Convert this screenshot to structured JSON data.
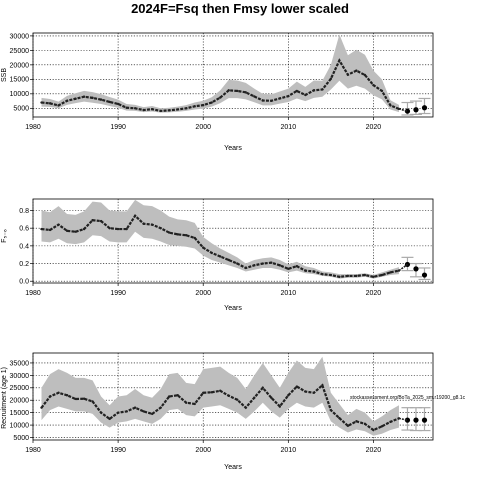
{
  "page": {
    "title": "2024F=Fsq then Fmsy lower scaled"
  },
  "chart_data": [
    {
      "type": "line",
      "panel": "ssb",
      "title": "",
      "xlabel": "Years",
      "ylabel": "SSB",
      "xlim": [
        1980,
        2027
      ],
      "ylim": [
        2000,
        31000
      ],
      "xticks": [
        1980,
        1990,
        2000,
        2010,
        2020
      ],
      "yticks": [
        5000,
        10000,
        15000,
        20000,
        25000,
        30000
      ],
      "grid": true,
      "band_color": "#bebebe",
      "line_color": "#222222",
      "x": [
        1981,
        1982,
        1983,
        1984,
        1985,
        1986,
        1987,
        1988,
        1989,
        1990,
        1991,
        1992,
        1993,
        1994,
        1995,
        1996,
        1997,
        1998,
        1999,
        2000,
        2001,
        2002,
        2003,
        2004,
        2005,
        2006,
        2007,
        2008,
        2009,
        2010,
        2011,
        2012,
        2013,
        2014,
        2015,
        2016,
        2017,
        2018,
        2019,
        2020,
        2021,
        2022,
        2023
      ],
      "values": [
        7000,
        6700,
        6000,
        7600,
        8300,
        9000,
        8600,
        8000,
        7200,
        6500,
        5200,
        5000,
        4400,
        4700,
        4100,
        4300,
        4600,
        5000,
        5700,
        6100,
        7000,
        8700,
        11200,
        11000,
        10500,
        9100,
        7700,
        7600,
        8400,
        9200,
        11000,
        9600,
        11200,
        11500,
        15200,
        21500,
        16600,
        18000,
        16500,
        13000,
        11000,
        6000,
        4800
      ],
      "lower": [
        5600,
        5500,
        5000,
        6200,
        6800,
        7300,
        6900,
        6500,
        5800,
        5200,
        4200,
        4100,
        3700,
        3900,
        3500,
        3600,
        3800,
        4100,
        4600,
        4900,
        5600,
        6800,
        8500,
        8500,
        8100,
        7100,
        6000,
        6000,
        6600,
        7200,
        8400,
        7500,
        8600,
        9000,
        11500,
        14500,
        11800,
        12800,
        11800,
        9500,
        8100,
        4600,
        3700
      ],
      "upper": [
        8600,
        8200,
        7300,
        9300,
        10200,
        11000,
        10600,
        9900,
        8900,
        8000,
        6500,
        6200,
        5400,
        5800,
        5000,
        5200,
        5600,
        6100,
        7000,
        7600,
        8800,
        11200,
        14800,
        14600,
        13800,
        11800,
        10000,
        9800,
        10800,
        11800,
        14200,
        12400,
        14600,
        14500,
        20000,
        30500,
        23300,
        25200,
        23500,
        18000,
        15000,
        7800,
        6200
      ],
      "projection": {
        "x": [
          2024,
          2025,
          2026
        ],
        "values": [
          4000,
          4500,
          5200
        ],
        "lower": [
          2700,
          2900,
          3200
        ],
        "upper": [
          7000,
          7500,
          8400
        ]
      }
    },
    {
      "type": "line",
      "panel": "fbar",
      "title": "",
      "xlabel": "Years",
      "ylabel": "F₅₋₆",
      "xlim": [
        1980,
        2027
      ],
      "ylim": [
        -0.02,
        0.93
      ],
      "xticks": [
        1980,
        1990,
        2000,
        2010,
        2020
      ],
      "yticks": [
        0.0,
        0.2,
        0.4,
        0.6,
        0.8
      ],
      "grid": true,
      "band_color": "#bebebe",
      "line_color": "#222222",
      "x": [
        1981,
        1982,
        1983,
        1984,
        1985,
        1986,
        1987,
        1988,
        1989,
        1990,
        1991,
        1992,
        1993,
        1994,
        1995,
        1996,
        1997,
        1998,
        1999,
        2000,
        2001,
        2002,
        2003,
        2004,
        2005,
        2006,
        2007,
        2008,
        2009,
        2010,
        2011,
        2012,
        2013,
        2014,
        2015,
        2016,
        2017,
        2018,
        2019,
        2020,
        2021,
        2022,
        2023
      ],
      "values": [
        0.59,
        0.58,
        0.64,
        0.57,
        0.56,
        0.59,
        0.69,
        0.68,
        0.6,
        0.59,
        0.59,
        0.74,
        0.65,
        0.64,
        0.6,
        0.55,
        0.53,
        0.52,
        0.49,
        0.38,
        0.32,
        0.28,
        0.24,
        0.2,
        0.15,
        0.18,
        0.2,
        0.21,
        0.18,
        0.14,
        0.17,
        0.12,
        0.11,
        0.08,
        0.07,
        0.05,
        0.06,
        0.06,
        0.07,
        0.05,
        0.07,
        0.1,
        0.12
      ],
      "lower": [
        0.45,
        0.44,
        0.48,
        0.43,
        0.42,
        0.44,
        0.52,
        0.51,
        0.45,
        0.44,
        0.44,
        0.56,
        0.49,
        0.48,
        0.45,
        0.41,
        0.4,
        0.39,
        0.37,
        0.29,
        0.24,
        0.21,
        0.18,
        0.15,
        0.11,
        0.13,
        0.15,
        0.15,
        0.13,
        0.1,
        0.12,
        0.09,
        0.08,
        0.06,
        0.05,
        0.03,
        0.04,
        0.04,
        0.05,
        0.03,
        0.05,
        0.07,
        0.08
      ],
      "upper": [
        0.8,
        0.78,
        0.85,
        0.76,
        0.75,
        0.79,
        0.9,
        0.89,
        0.8,
        0.79,
        0.79,
        0.92,
        0.86,
        0.85,
        0.8,
        0.73,
        0.7,
        0.69,
        0.66,
        0.5,
        0.43,
        0.37,
        0.32,
        0.27,
        0.2,
        0.24,
        0.26,
        0.27,
        0.24,
        0.19,
        0.22,
        0.17,
        0.15,
        0.11,
        0.1,
        0.08,
        0.08,
        0.08,
        0.09,
        0.07,
        0.1,
        0.13,
        0.16
      ],
      "projection": {
        "x": [
          2024,
          2025,
          2026
        ],
        "values": [
          0.19,
          0.14,
          0.07
        ],
        "lower": [
          0.12,
          0.05,
          0.02
        ],
        "upper": [
          0.27,
          0.2,
          0.15
        ]
      }
    },
    {
      "type": "line",
      "panel": "recruitment",
      "title": "",
      "xlabel": "Years",
      "ylabel": "Recruitment (age 1)",
      "xlim": [
        1980,
        2027
      ],
      "ylim": [
        4000,
        39000
      ],
      "xticks": [
        1980,
        1990,
        2000,
        2010,
        2020
      ],
      "yticks": [
        5000,
        10000,
        15000,
        20000,
        25000,
        30000,
        35000
      ],
      "grid": true,
      "band_color": "#bebebe",
      "line_color": "#222222",
      "annotation": "stockassessment.org/BoTa_2025_sm.r19200_g8.1c",
      "x": [
        1981,
        1982,
        1983,
        1984,
        1985,
        1986,
        1987,
        1988,
        1989,
        1990,
        1991,
        1992,
        1993,
        1994,
        1995,
        1996,
        1997,
        1998,
        1999,
        2000,
        2001,
        2002,
        2003,
        2004,
        2005,
        2006,
        2007,
        2008,
        2009,
        2010,
        2011,
        2012,
        2013,
        2014,
        2015,
        2016,
        2017,
        2018,
        2019,
        2020,
        2021,
        2022,
        2023
      ],
      "values": [
        17000,
        21500,
        23000,
        22000,
        20500,
        20600,
        19500,
        15000,
        12500,
        15000,
        15500,
        17000,
        15500,
        14500,
        17000,
        21500,
        22000,
        19000,
        18500,
        23000,
        23200,
        23800,
        21800,
        20200,
        17000,
        21000,
        25000,
        21000,
        17500,
        22000,
        25500,
        23500,
        23000,
        26000,
        16000,
        12800,
        9700,
        11500,
        10500,
        8000,
        9500,
        11300,
        12700
      ],
      "lower": [
        12000,
        16000,
        17500,
        16500,
        15500,
        15500,
        14500,
        11000,
        9000,
        11000,
        11500,
        12500,
        11500,
        10500,
        12500,
        16000,
        16500,
        14000,
        13500,
        17000,
        17500,
        18000,
        16500,
        15000,
        12500,
        15500,
        19000,
        15500,
        13000,
        16500,
        19000,
        17500,
        17000,
        19000,
        11500,
        9000,
        7000,
        8200,
        7500,
        5700,
        6500,
        8000,
        9000
      ],
      "upper": [
        25000,
        30500,
        32500,
        31000,
        29000,
        29000,
        28000,
        21500,
        18000,
        21500,
        22000,
        24500,
        22000,
        21000,
        24500,
        30500,
        31000,
        27000,
        26500,
        32500,
        33000,
        33500,
        31000,
        29000,
        24500,
        30000,
        35000,
        30000,
        25000,
        31000,
        36000,
        33000,
        32500,
        37500,
        23000,
        18500,
        14000,
        16500,
        15000,
        11500,
        13500,
        16000,
        18000
      ],
      "projection": {
        "x": [
          2024,
          2025,
          2026
        ],
        "values": [
          12000,
          12000,
          12000
        ],
        "lower": [
          8000,
          7800,
          7800
        ],
        "upper": [
          17000,
          17000,
          17000
        ]
      }
    }
  ]
}
